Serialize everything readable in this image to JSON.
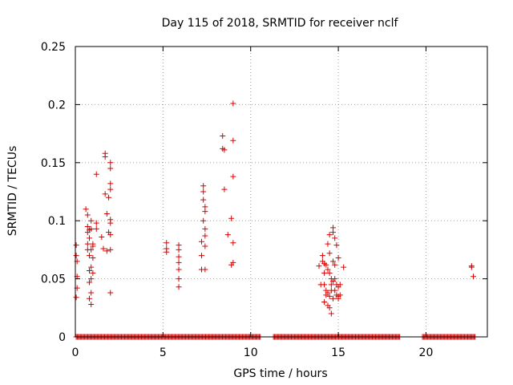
{
  "chart_data": {
    "type": "scatter",
    "title": "Day 115 of 2018, SRMTID for receiver nclf",
    "xlabel": "GPS time / hours",
    "ylabel": "SRMTID / TECUs",
    "xlim": [
      0,
      23.5
    ],
    "ylim": [
      0,
      0.25
    ],
    "x_ticks": [
      0,
      5,
      10,
      15,
      20
    ],
    "x_tick_labels": [
      "0",
      "5",
      "10",
      "15",
      "20"
    ],
    "y_ticks": [
      0,
      0.05,
      0.1,
      0.15,
      0.2,
      0.25
    ],
    "y_tick_labels": [
      "0",
      "0.05",
      "0.1",
      "0.15",
      "0.2",
      "0.25"
    ],
    "grid": true,
    "marker": "+",
    "series_color": "#dd0000",
    "zero_baseline_segments": [
      [
        0.05,
        10.6
      ],
      [
        11.3,
        18.5
      ],
      [
        19.8,
        22.8
      ]
    ],
    "series": [
      {
        "name": "SRMTID",
        "x": [
          0.05,
          0.05,
          0.05,
          0.1,
          0.1,
          0.1,
          0.6,
          0.7,
          0.7,
          0.7,
          0.7,
          0.7,
          0.8,
          0.8,
          0.8,
          0.8,
          0.8,
          0.8,
          0.9,
          0.9,
          0.9,
          0.9,
          0.9,
          0.9,
          0.9,
          1.0,
          1.0,
          1.0,
          1.0,
          1.2,
          1.2,
          1.2,
          1.5,
          1.6,
          1.7,
          1.7,
          1.7,
          1.8,
          1.8,
          1.9,
          1.9,
          2.0,
          2.0,
          2.0,
          2.0,
          2.0,
          2.0,
          2.0,
          2.0,
          2.0,
          5.2,
          5.2,
          5.2,
          5.9,
          5.9,
          5.9,
          5.9,
          5.9,
          5.9,
          5.9,
          7.2,
          7.2,
          7.2,
          7.3,
          7.3,
          7.3,
          7.3,
          7.4,
          7.4,
          7.4,
          7.4,
          7.4,
          7.4,
          8.4,
          8.4,
          8.5,
          8.5,
          8.7,
          8.9,
          8.9,
          9.0,
          9.0,
          9.0,
          9.0,
          9.0,
          13.9,
          14.0,
          14.1,
          14.1,
          14.2,
          14.2,
          14.2,
          14.2,
          14.3,
          14.3,
          14.3,
          14.4,
          14.4,
          14.4,
          14.4,
          14.5,
          14.5,
          14.5,
          14.5,
          14.5,
          14.6,
          14.6,
          14.6,
          14.6,
          14.7,
          14.7,
          14.7,
          14.7,
          14.7,
          14.8,
          14.8,
          14.8,
          14.8,
          14.9,
          14.9,
          14.9,
          15.0,
          15.0,
          15.0,
          15.0,
          15.1,
          15.1,
          15.3,
          22.6,
          22.6,
          22.7
        ],
        "y": [
          0.079,
          0.07,
          0.034,
          0.065,
          0.052,
          0.042,
          0.11,
          0.105,
          0.095,
          0.09,
          0.08,
          0.075,
          0.092,
          0.085,
          0.07,
          0.057,
          0.047,
          0.033,
          0.1,
          0.093,
          0.075,
          0.06,
          0.05,
          0.038,
          0.028,
          0.08,
          0.078,
          0.068,
          0.055,
          0.14,
          0.098,
          0.093,
          0.086,
          0.076,
          0.158,
          0.155,
          0.123,
          0.106,
          0.074,
          0.12,
          0.09,
          0.15,
          0.145,
          0.132,
          0.127,
          0.101,
          0.098,
          0.088,
          0.075,
          0.038,
          0.081,
          0.076,
          0.073,
          0.079,
          0.075,
          0.069,
          0.064,
          0.058,
          0.05,
          0.043,
          0.082,
          0.07,
          0.058,
          0.13,
          0.125,
          0.118,
          0.1,
          0.112,
          0.108,
          0.093,
          0.087,
          0.078,
          0.058,
          0.173,
          0.162,
          0.127,
          0.161,
          0.088,
          0.102,
          0.062,
          0.201,
          0.169,
          0.138,
          0.081,
          0.064,
          0.061,
          0.045,
          0.07,
          0.065,
          0.063,
          0.055,
          0.045,
          0.03,
          0.062,
          0.04,
          0.036,
          0.08,
          0.058,
          0.038,
          0.027,
          0.088,
          0.072,
          0.055,
          0.035,
          0.025,
          0.05,
          0.045,
          0.04,
          0.02,
          0.094,
          0.09,
          0.065,
          0.048,
          0.033,
          0.085,
          0.062,
          0.05,
          0.04,
          0.079,
          0.045,
          0.036,
          0.068,
          0.043,
          0.033,
          0.035,
          0.045,
          0.036,
          0.06,
          0.061,
          0.06,
          0.052
        ]
      }
    ]
  }
}
